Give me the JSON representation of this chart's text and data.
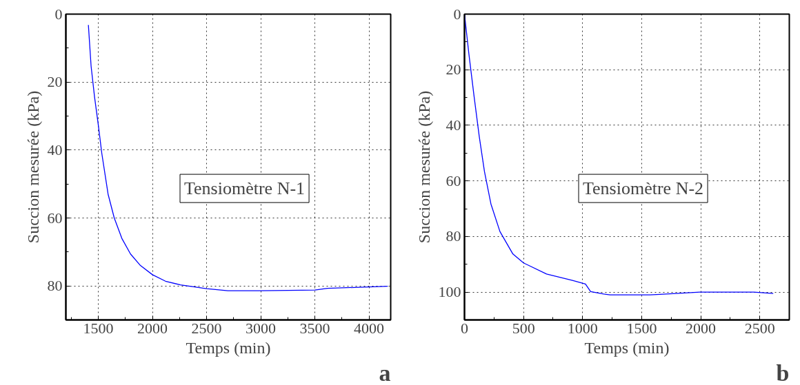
{
  "chart_data": [
    {
      "type": "line",
      "xlabel": "Temps (min)",
      "ylabel": "Succion mesurée (kPa)",
      "annotations": [
        "Tensiomètre N-1",
        "a"
      ],
      "x": [
        1408,
        1433,
        1465,
        1500,
        1532,
        1590,
        1647,
        1717,
        1797,
        1889,
        2000,
        2120,
        2258,
        2500,
        2696,
        3000,
        3500,
        3617,
        4000,
        4173
      ],
      "series": [
        {
          "color": "#0000ff",
          "values": [
            3.2,
            15.3,
            24.4,
            32.7,
            41,
            53,
            60,
            66,
            70.6,
            74,
            76.7,
            78.6,
            79.7,
            80.8,
            81.4,
            81.4,
            81.2,
            80.7,
            80.3,
            80.1
          ]
        }
      ],
      "xlim": [
        1200,
        4200
      ],
      "ylim": [
        90,
        0
      ],
      "xticks": [
        {
          "value": 1250,
          "label": null
        },
        1500,
        {
          "value": 1750,
          "label": null
        },
        2000,
        {
          "value": 2250,
          "label": null
        },
        2500,
        {
          "value": 2750,
          "label": null
        },
        3000,
        {
          "value": 3250,
          "label": null
        },
        3500,
        {
          "value": 3750,
          "label": null
        },
        4000
      ],
      "yticks": [
        0,
        {
          "value": 10,
          "label": null
        },
        20,
        {
          "value": 30,
          "label": null
        },
        40,
        {
          "value": 50,
          "label": null
        },
        60,
        {
          "value": 70,
          "label": null
        },
        80,
        {
          "value": 90,
          "label": null
        }
      ],
      "grid": true,
      "line_style": "solid",
      "marker": "none"
    },
    {
      "type": "line",
      "xlabel": "Temps (min)",
      "ylabel": "Succion mesurée (kPa)",
      "annotations": [
        "Tensiomètre N-2",
        "b"
      ],
      "x": [
        0,
        37,
        81,
        125,
        169,
        224,
        300,
        410,
        500,
        695,
        914,
        1024,
        1068,
        1178,
        1232,
        1572,
        1792,
        1991,
        2450,
        2614
      ],
      "series": [
        {
          "color": "#0000ff",
          "values": [
            0,
            14.2,
            29.5,
            44,
            56.6,
            68.3,
            78.2,
            86.3,
            89.5,
            93.5,
            95.8,
            97.1,
            99.8,
            100.7,
            101,
            101,
            100.5,
            100,
            100,
            100.5
          ]
        }
      ],
      "xlim": [
        0,
        2750
      ],
      "ylim": [
        110,
        0
      ],
      "xticks": [
        0,
        {
          "value": 250,
          "label": null
        },
        500,
        {
          "value": 750,
          "label": null
        },
        1000,
        {
          "value": 1250,
          "label": null
        },
        1500,
        {
          "value": 1750,
          "label": null
        },
        2000,
        {
          "value": 2250,
          "label": null
        },
        2500,
        {
          "value": 2750,
          "label": null
        }
      ],
      "yticks": [
        0,
        {
          "value": 10,
          "label": null
        },
        20,
        {
          "value": 30,
          "label": null
        },
        40,
        {
          "value": 50,
          "label": null
        },
        60,
        {
          "value": 70,
          "label": null
        },
        80,
        {
          "value": 90,
          "label": null
        },
        100,
        {
          "value": 110,
          "label": null
        }
      ],
      "grid": true,
      "line_style": "solid",
      "marker": "none"
    }
  ]
}
